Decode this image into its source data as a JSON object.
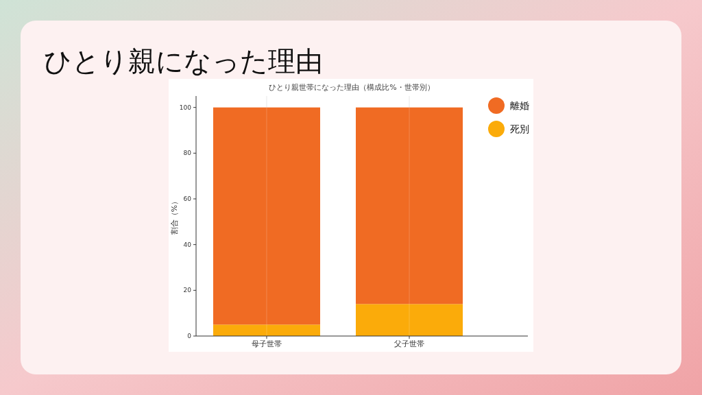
{
  "chart_data": {
    "type": "bar",
    "title": "ひとり親になった理由",
    "subtitle": "ひとり親世帯になった理由（構成比%・世帯別）",
    "ylabel": "割合（%）",
    "categories": [
      "母子世帯",
      "父子世帯"
    ],
    "series": [
      {
        "name": "死別",
        "color": "#fbab0a",
        "values": [
          5,
          14
        ]
      },
      {
        "name": "離婚",
        "color": "#f06b23",
        "values": [
          95,
          86
        ]
      }
    ],
    "stacked": true,
    "ylim": [
      0,
      105
    ],
    "yticks": [
      0,
      20,
      40,
      60,
      80,
      100
    ],
    "grid": "x",
    "legend": "top right"
  }
}
